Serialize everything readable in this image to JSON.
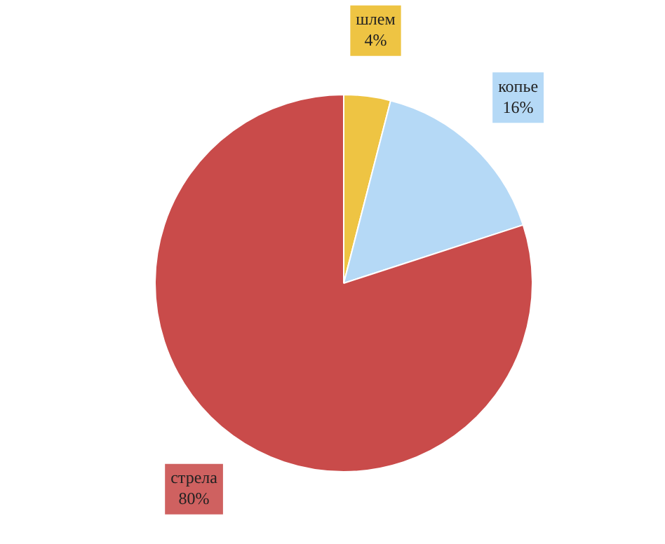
{
  "chart_data": {
    "type": "pie",
    "categories": [
      "шлем",
      "копье",
      "стрела"
    ],
    "values": [
      4,
      16,
      80
    ],
    "value_labels": [
      "4%",
      "16%",
      "80%"
    ],
    "colors": [
      "#eec443",
      "#b5d9f6",
      "#c94b4a"
    ],
    "legend": false
  }
}
